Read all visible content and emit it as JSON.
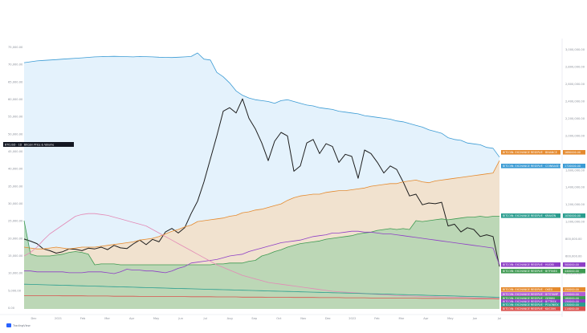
{
  "chart_data": {
    "type": "area",
    "title": "Bitcoin Price & Volume",
    "symbol_tag": "BTCUSD · 1D",
    "watermark": "TradingView",
    "x_labels": [
      "Dec",
      "2021",
      "Feb",
      "Mar",
      "Apr",
      "May",
      "Jun",
      "Jul",
      "Aug",
      "Sep",
      "Oct",
      "Nov",
      "Dec",
      "2022",
      "Feb",
      "Mar",
      "Apr",
      "May",
      "Jun",
      "Jul"
    ],
    "left_axis_ticks": [
      "75,000.00",
      "70,000.00",
      "65,000.00",
      "60,000.00",
      "55,000.00",
      "50,000.00",
      "45,000.00",
      "40,000.00",
      "35,000.00",
      "30,000.00",
      "25,000.00",
      "20,000.00",
      "15,000.00",
      "10,000.00",
      "5,000.00",
      "0.00"
    ],
    "right_axis_ticks": [
      "3,000,000.00",
      "2,800,000.00",
      "2,600,000.00",
      "2,400,000.00",
      "2,200,000.00",
      "2,000,000.00",
      "1,800,000.00",
      "1,600,000.00",
      "1,400,000.00",
      "1,200,000.00",
      "1,000,000.00",
      "800,000.00",
      "600,000.00",
      "400,000.00",
      "200,000.00",
      "0.00"
    ],
    "grid": false,
    "series": [
      {
        "role": "price",
        "color": "#1e1e1e",
        "values": [
          19800,
          19200,
          18500,
          17000,
          16500,
          15800,
          16200,
          17000,
          16900,
          16500,
          17200,
          17000,
          17500,
          16800,
          18000,
          17300,
          17100,
          18400,
          19500,
          18200,
          19700,
          19000,
          21800,
          22800,
          21500,
          23000,
          27000,
          30500,
          36000,
          42500,
          49000,
          56000,
          57000,
          55500,
          59500,
          54000,
          51000,
          47000,
          42000,
          47500,
          50000,
          49000,
          39000,
          40500,
          47000,
          48000,
          44000,
          46800,
          46000,
          41500,
          43800,
          43200,
          37000,
          45000,
          44000,
          41500,
          38500,
          40500,
          39500,
          36000,
          32000,
          32500,
          29500,
          30000,
          29800,
          30200,
          23500,
          24000,
          21800,
          23000,
          22500,
          20500,
          21000,
          20500,
          12000
        ]
      },
      {
        "role": "exchange-reserve",
        "color": "#3b9bd4",
        "fill": "#dbeefb",
        "values": [
          2790000,
          2800000,
          2810000,
          2815000,
          2820000,
          2825000,
          2830000,
          2835000,
          2840000,
          2845000,
          2850000,
          2855000,
          2858000,
          2860000,
          2862000,
          2860000,
          2858000,
          2855000,
          2860000,
          2858000,
          2855000,
          2852000,
          2850000,
          2848000,
          2852000,
          2855000,
          2860000,
          2900000,
          2830000,
          2820000,
          2680000,
          2630000,
          2560000,
          2470000,
          2420000,
          2390000,
          2370000,
          2360000,
          2350000,
          2330000,
          2360000,
          2370000,
          2350000,
          2330000,
          2310000,
          2300000,
          2280000,
          2270000,
          2260000,
          2240000,
          2230000,
          2220000,
          2210000,
          2190000,
          2180000,
          2170000,
          2160000,
          2150000,
          2130000,
          2120000,
          2100000,
          2080000,
          2060000,
          2030000,
          2010000,
          1990000,
          1940000,
          1920000,
          1910000,
          1880000,
          1870000,
          1860000,
          1830000,
          1820000,
          1720000
        ]
      },
      {
        "role": "reserve-orange",
        "color": "#e58a2e",
        "fill": "#f6dcc0",
        "values": [
          700000,
          690000,
          680000,
          680000,
          690000,
          700000,
          690000,
          680000,
          690000,
          700000,
          700000,
          700000,
          710000,
          720000,
          730000,
          740000,
          750000,
          760000,
          780000,
          790000,
          800000,
          820000,
          850000,
          880000,
          900000,
          930000,
          950000,
          990000,
          1000000,
          1010000,
          1020000,
          1030000,
          1050000,
          1060000,
          1090000,
          1100000,
          1120000,
          1130000,
          1150000,
          1170000,
          1190000,
          1230000,
          1260000,
          1280000,
          1290000,
          1300000,
          1300000,
          1320000,
          1330000,
          1340000,
          1340000,
          1350000,
          1360000,
          1370000,
          1390000,
          1400000,
          1410000,
          1420000,
          1420000,
          1440000,
          1450000,
          1460000,
          1440000,
          1430000,
          1450000,
          1460000,
          1470000,
          1480000,
          1490000,
          1500000,
          1510000,
          1520000,
          1530000,
          1540000,
          1680000
        ]
      },
      {
        "role": "reserve-green",
        "color": "#3f9a52",
        "fill": "#a9d3ae",
        "values": [
          1000000,
          620000,
          600000,
          600000,
          600000,
          610000,
          620000,
          640000,
          650000,
          640000,
          620000,
          500000,
          510000,
          510000,
          510000,
          500000,
          500000,
          500000,
          500000,
          500000,
          500000,
          500000,
          500000,
          500000,
          500000,
          500000,
          500000,
          500000,
          500000,
          500000,
          510000,
          510000,
          520000,
          520000,
          520000,
          540000,
          550000,
          600000,
          620000,
          650000,
          670000,
          700000,
          720000,
          740000,
          750000,
          760000,
          770000,
          790000,
          800000,
          810000,
          820000,
          830000,
          850000,
          860000,
          870000,
          890000,
          900000,
          910000,
          900000,
          910000,
          900000,
          1000000,
          990000,
          1000000,
          1010000,
          1020000,
          1010000,
          1020000,
          1030000,
          1040000,
          1040000,
          1050000,
          1040000,
          1050000,
          1050000
        ]
      },
      {
        "role": "reserve-purple",
        "color": "#8e3fc6",
        "values": [
          430000,
          430000,
          420000,
          420000,
          420000,
          420000,
          420000,
          410000,
          410000,
          410000,
          420000,
          420000,
          420000,
          410000,
          400000,
          420000,
          450000,
          440000,
          440000,
          430000,
          430000,
          420000,
          410000,
          430000,
          460000,
          480000,
          520000,
          530000,
          540000,
          550000,
          560000,
          580000,
          600000,
          610000,
          620000,
          650000,
          670000,
          690000,
          710000,
          730000,
          750000,
          760000,
          770000,
          780000,
          800000,
          820000,
          830000,
          840000,
          860000,
          860000,
          870000,
          880000,
          880000,
          870000,
          870000,
          860000,
          850000,
          850000,
          840000,
          830000,
          820000,
          810000,
          800000,
          790000,
          780000,
          770000,
          760000,
          750000,
          740000,
          730000,
          720000,
          710000,
          700000,
          690000,
          500000
        ]
      },
      {
        "role": "reserve-pink",
        "color": "#e38ab6",
        "values": [
          600000,
          640000,
          700000,
          780000,
          850000,
          900000,
          950000,
          1000000,
          1050000,
          1070000,
          1080000,
          1080000,
          1070000,
          1060000,
          1040000,
          1020000,
          1000000,
          980000,
          960000,
          940000,
          900000,
          860000,
          820000,
          780000,
          740000,
          700000,
          660000,
          620000,
          580000,
          540000,
          500000,
          470000,
          440000,
          410000,
          380000,
          360000,
          340000,
          320000,
          300000,
          290000,
          280000,
          270000,
          260000,
          250000,
          240000,
          230000,
          220000,
          210000,
          200000,
          195000,
          190000,
          185000,
          180000,
          175000,
          170000,
          165000,
          160000,
          155000,
          150000,
          148000,
          146000,
          144000,
          142000,
          140000,
          138000,
          136000,
          134000,
          132000,
          130000,
          128000,
          126000,
          124000,
          122000,
          120000,
          118000
        ]
      },
      {
        "role": "reserve-teal",
        "color": "#2a9d8f",
        "values": [
          280000,
          278000,
          276000,
          274000,
          272000,
          270000,
          268000,
          266000,
          264000,
          262000,
          260000,
          258000,
          256000,
          254000,
          252000,
          250000,
          248000,
          246000,
          244000,
          242000,
          240000,
          238000,
          236000,
          234000,
          232000,
          230000,
          228000,
          226000,
          224000,
          222000,
          220000,
          218000,
          216000,
          214000,
          212000,
          210000,
          208000,
          206000,
          204000,
          202000,
          200000,
          198000,
          196000,
          194000,
          192000,
          190000,
          188000,
          186000,
          184000,
          182000,
          180000,
          178000,
          176000,
          174000,
          172000,
          170000,
          168000,
          166000,
          164000,
          162000,
          160000,
          158000,
          156000,
          154000,
          152000,
          150000,
          148000,
          146000,
          144000,
          142000,
          140000,
          138000,
          136000,
          134000,
          132000
        ]
      },
      {
        "role": "reserve-red",
        "color": "#d9534f",
        "values": [
          150000,
          150000,
          150000,
          150000,
          150000,
          150000,
          148000,
          148000,
          148000,
          148000,
          146000,
          146000,
          146000,
          146000,
          144000,
          144000,
          144000,
          144000,
          142000,
          142000,
          142000,
          142000,
          140000,
          140000,
          140000,
          140000,
          138000,
          138000,
          138000,
          138000,
          136000,
          136000,
          136000,
          136000,
          134000,
          134000,
          134000,
          134000,
          132000,
          132000,
          132000,
          132000,
          130000,
          130000,
          130000,
          130000,
          128000,
          128000,
          128000,
          128000,
          126000,
          126000,
          126000,
          126000,
          124000,
          124000,
          124000,
          124000,
          122000,
          122000,
          122000,
          122000,
          120000,
          120000,
          120000,
          120000,
          118000,
          118000,
          118000,
          118000,
          116000,
          116000,
          116000,
          116000,
          114000
        ]
      }
    ],
    "tags": [
      {
        "label": "BITCOIN: EXCHANGE RESERVE · BINANCE",
        "value": "1680000.00",
        "color": "#e58a2e"
      },
      {
        "label": "BITCOIN: EXCHANGE RESERVE · COINBASE PRO",
        "value": "1720000.00",
        "color": "#3b9bd4"
      },
      {
        "label": "BITCOIN: EXCHANGE RESERVE · KRAKEN",
        "value": "1050000.00",
        "color": "#2a9d8f"
      },
      {
        "label": "BITCOIN: EXCHANGE RESERVE · HUOBI",
        "value": "500000.00",
        "color": "#8e3fc6"
      },
      {
        "label": "BITCOIN: EXCHANGE RESERVE · BITFINEX",
        "value": "440000.00",
        "color": "#3f9a52"
      },
      {
        "label": "BITCOIN: EXCHANGE RESERVE · OKEX",
        "value": "250000.00",
        "color": "#e58a2e"
      },
      {
        "label": "BITCOIN: EXCHANGE RESERVE · BITSTAMP",
        "value": "220000.00",
        "color": "#b15fd6"
      },
      {
        "label": "BITCOIN: EXCHANGE RESERVE · GEMINI",
        "value": "180000.00",
        "color": "#3f9a52"
      },
      {
        "label": "BITCOIN: EXCHANGE RESERVE · BITTREX",
        "value": "150000.00",
        "color": "#8e3fc6"
      },
      {
        "label": "BITCOIN: EXCHANGE RESERVE · POLONIEX",
        "value": "130000.00",
        "color": "#2a9d8f"
      },
      {
        "label": "BITCOIN: EXCHANGE RESERVE · KUCOIN",
        "value": "114000.00",
        "color": "#d9534f"
      }
    ],
    "ylim_left": [
      0,
      75000
    ],
    "ylim_right": [
      0,
      3000000
    ]
  }
}
